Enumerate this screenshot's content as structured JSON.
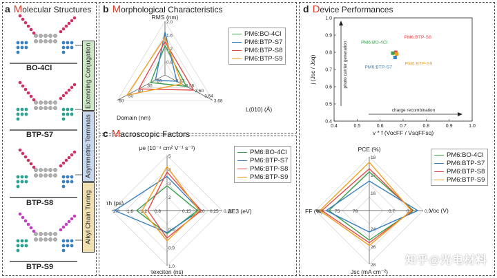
{
  "panels": {
    "a": {
      "letter": "a",
      "cap": "M",
      "rest": "olecular Structures"
    },
    "b": {
      "letter": "b",
      "cap": "M",
      "rest": "orphological Characteristics"
    },
    "c": {
      "letter": "c",
      "cap": "M",
      "rest": "acroscopic Factors"
    },
    "d": {
      "letter": "d",
      "cap": "D",
      "rest": "evice Performances"
    }
  },
  "molecules": [
    "BO-4Cl",
    "BTP-S7",
    "BTP-S8",
    "BTP-S9"
  ],
  "side_labels": [
    "Extending Conjugation",
    "Asymmetric Terminals",
    "Alkyl Chain Tuning"
  ],
  "series_names": [
    "PM6:BO-4Cl",
    "PM6:BTP-S7",
    "PM6:BTP-S8",
    "PM6:BTP-S9"
  ],
  "series_colors": [
    "#3aa04a",
    "#3a7fc0",
    "#e04a4a",
    "#f0a020"
  ],
  "watermark": "知乎@光电材料",
  "chart_data": [
    {
      "type": "radar",
      "id": "b",
      "axes": [
        {
          "label": "RMS (nm)",
          "ticks": [
            "0.8",
            "1.2",
            "1.6",
            "2.0"
          ]
        },
        {
          "label": "L(010) (Å)",
          "ticks": [
            "3.52",
            "3.56",
            "3.60",
            "3.64",
            "3.68"
          ]
        },
        {
          "label": "Domain (nm)",
          "ticks": [
            "20",
            "30",
            "40",
            "50",
            "60"
          ]
        }
      ],
      "series": [
        {
          "name": "PM6:BO-4Cl",
          "values": [
            0.55,
            0.45,
            0.3
          ]
        },
        {
          "name": "PM6:BTP-S7",
          "values": [
            0.8,
            0.25,
            0.2
          ]
        },
        {
          "name": "PM6:BTP-S8",
          "values": [
            0.62,
            0.6,
            0.55
          ]
        },
        {
          "name": "PM6:BTP-S9",
          "values": [
            0.7,
            0.35,
            0.8
          ]
        }
      ]
    },
    {
      "type": "radar",
      "id": "c",
      "axes": [
        {
          "label": "μe (10⁻⁴ cm² V⁻¹ s⁻¹)",
          "ticks": [
            "2",
            "3",
            "4",
            "5"
          ]
        },
        {
          "label": "ΔE3 (eV)",
          "ticks": [
            "0.15",
            "0.20",
            "0.25",
            "0.30"
          ]
        },
        {
          "label": "τexciton (ns)",
          "ticks": [
            "0.8",
            "0.9",
            "1.0"
          ]
        },
        {
          "label": "τh (ps)",
          "ticks": [
            "0.8",
            "1.2",
            "1.6",
            "2.0"
          ]
        }
      ],
      "series": [
        {
          "name": "PM6:BO-4Cl",
          "values": [
            0.45,
            0.55,
            0.42,
            0.55
          ]
        },
        {
          "name": "PM6:BTP-S7",
          "values": [
            0.62,
            0.6,
            0.4,
            0.95
          ]
        },
        {
          "name": "PM6:BTP-S8",
          "values": [
            0.7,
            0.62,
            0.5,
            0.35
          ]
        },
        {
          "name": "PM6:BTP-S9",
          "values": [
            0.8,
            0.58,
            0.55,
            0.45
          ]
        }
      ]
    },
    {
      "type": "scatter",
      "id": "d-top",
      "xlabel": "v * f (VocFF / VsqFFsq)",
      "ylabel": "j (Jsc / Jsq)",
      "xlim": [
        0.4,
        1.0
      ],
      "ylim": [
        0.4,
        1.0
      ],
      "xticks": [
        "0.4",
        "0.5",
        "0.6",
        "0.7",
        "0.8",
        "0.9",
        "1.0"
      ],
      "yticks": [
        "0.4",
        "0.5",
        "0.6",
        "0.7",
        "0.8",
        "0.9",
        "1.0"
      ],
      "arrow_y_label": "photo carrier generation",
      "arrow_x_label": "charge recombination",
      "points": [
        {
          "name": "PM6:BO-4Cl",
          "x": 0.655,
          "y": 0.795,
          "label": "PM6:BO-4Cl"
        },
        {
          "name": "PM6:BTP-S7",
          "x": 0.665,
          "y": 0.77,
          "label": "PM6:BTP-S7"
        },
        {
          "name": "PM6:BTP-S8",
          "x": 0.668,
          "y": 0.8,
          "label": "PM6:BTP-S8"
        },
        {
          "name": "PM6:BTP-S9",
          "x": 0.672,
          "y": 0.79,
          "label": "PM6:BTP-S9"
        }
      ]
    },
    {
      "type": "radar",
      "id": "d-bottom",
      "axes": [
        {
          "label": "PCE (%)",
          "ticks": [
            "16",
            "17",
            "18"
          ]
        },
        {
          "label": "Voc (V)",
          "ticks": [
            "0.7",
            "0.8",
            "0.9"
          ]
        },
        {
          "label": "Jsc (mA cm⁻²)",
          "ticks": [
            "24",
            "26",
            "28"
          ]
        },
        {
          "label": "FF (%)",
          "ticks": [
            "70",
            "75",
            "80"
          ]
        }
      ],
      "series": [
        {
          "name": "PM6:BO-4Cl",
          "values": [
            0.72,
            0.82,
            0.55,
            0.75
          ]
        },
        {
          "name": "PM6:BTP-S7",
          "values": [
            0.55,
            0.9,
            0.4,
            0.8
          ]
        },
        {
          "name": "PM6:BTP-S8",
          "values": [
            0.78,
            0.8,
            0.6,
            0.88
          ]
        },
        {
          "name": "PM6:BTP-S9",
          "values": [
            0.9,
            0.78,
            0.65,
            0.92
          ]
        }
      ]
    }
  ]
}
